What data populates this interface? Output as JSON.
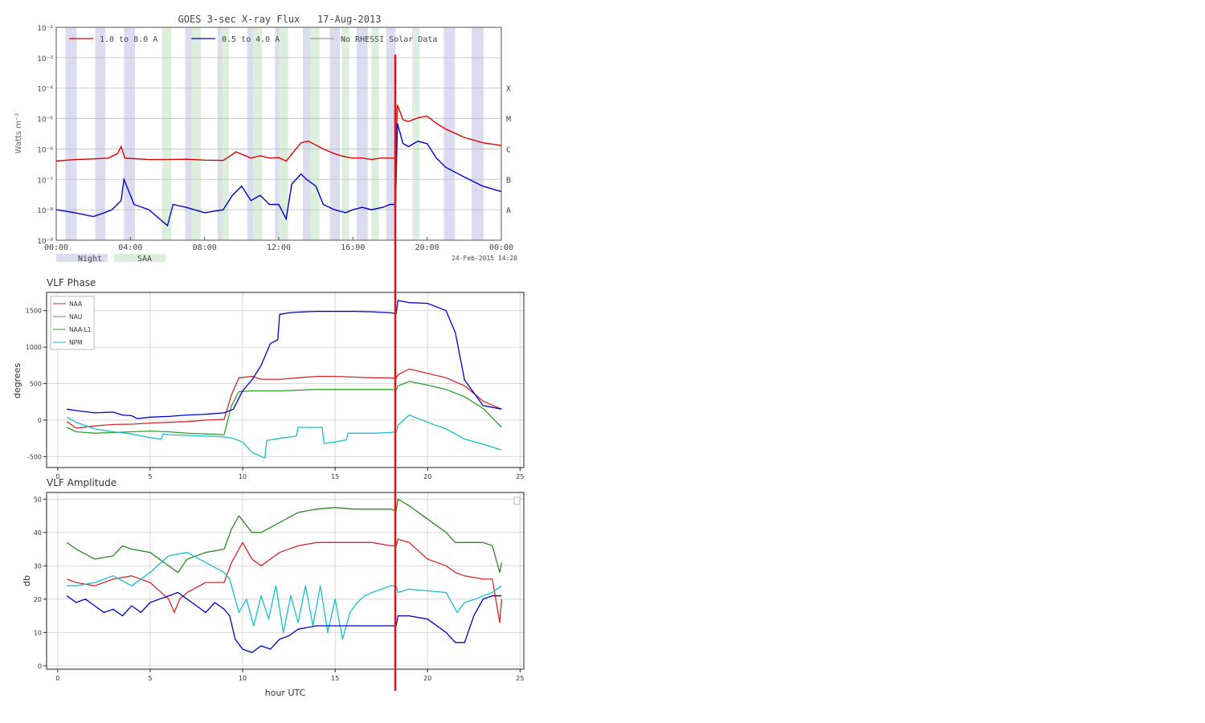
{
  "goes": {
    "title": "GOES 3-sec X-ray Flux   17-Aug-2013",
    "ylabel": "Watts m⁻²",
    "legend": [
      {
        "label": "1.0 to 8.0 A",
        "color": "#dd0000"
      },
      {
        "label": "0.5 to 4.0 A",
        "color": "#0000cc"
      },
      {
        "label": "No RHESSI Solar Data",
        "color": "#999999"
      }
    ],
    "footer_keys": [
      {
        "label": "Night",
        "color": "#dcdcf0"
      },
      {
        "label": "SAA",
        "color": "#dcefdc"
      }
    ],
    "timestamp": "24-Feb-2015 14:20"
  },
  "chart_data": [
    {
      "type": "line",
      "title": "GOES 3-sec X-ray Flux   17-Aug-2013",
      "xlabel": "",
      "ylabel": "Watts m⁻²",
      "y_scale": "log",
      "xlim": [
        0,
        24
      ],
      "ylim": [
        1e-09,
        0.01
      ],
      "x_ticks": [
        "00:00",
        "04:00",
        "08:00",
        "12:00",
        "16:00",
        "20:00",
        "00:00"
      ],
      "y_ticks": [
        "10⁻⁹",
        "10⁻⁸",
        "10⁻⁷",
        "10⁻⁶",
        "10⁻⁵",
        "10⁻⁴",
        "10⁻³",
        "10⁻²"
      ],
      "flare_classes": [
        {
          "label": "A",
          "value": 1e-08
        },
        {
          "label": "B",
          "value": 1e-07
        },
        {
          "label": "C",
          "value": 1e-06
        },
        {
          "label": "M",
          "value": 1e-05
        },
        {
          "label": "X",
          "value": 0.0001
        }
      ],
      "night_intervals": [
        [
          0.5,
          1.1
        ],
        [
          2.1,
          2.65
        ],
        [
          3.65,
          4.25
        ],
        [
          6.95,
          7.75
        ],
        [
          8.7,
          9.3
        ],
        [
          10.3,
          10.9
        ],
        [
          11.8,
          12.4
        ],
        [
          13.3,
          13.9
        ],
        [
          14.75,
          15.3
        ],
        [
          16.2,
          16.8
        ],
        [
          17.8,
          18.3
        ],
        [
          20.9,
          21.5
        ],
        [
          22.4,
          23.05
        ]
      ],
      "saa_intervals": [
        [
          5.7,
          6.2
        ],
        [
          7.3,
          7.8
        ],
        [
          8.9,
          9.3
        ],
        [
          10.6,
          11.1
        ],
        [
          12.0,
          12.5
        ],
        [
          13.7,
          14.2
        ],
        [
          15.4,
          15.8
        ],
        [
          17.0,
          17.4
        ],
        [
          19.2,
          19.6
        ]
      ],
      "series": [
        {
          "name": "1.0 to 8.0 A",
          "color": "#dd0000",
          "x": [
            0,
            1,
            2,
            2.8,
            3.3,
            3.5,
            3.7,
            4.2,
            5,
            6,
            7,
            8,
            9,
            9.3,
            9.7,
            10.5,
            11,
            11.5,
            12,
            12.4,
            13.2,
            13.6,
            14.4,
            15,
            15.6,
            16,
            16.5,
            17,
            17.5,
            18,
            18.3,
            18.4,
            18.7,
            19,
            19.6,
            20,
            20.5,
            21,
            22,
            23,
            24
          ],
          "y": [
            4e-07,
            4.5e-07,
            4.7e-07,
            5e-07,
            7e-07,
            1.2e-06,
            5e-07,
            4.8e-07,
            4.5e-07,
            4.5e-07,
            4.6e-07,
            4.3e-07,
            4.2e-07,
            5.5e-07,
            8e-07,
            5e-07,
            6e-07,
            5e-07,
            5.2e-07,
            4e-07,
            1.6e-06,
            1.8e-06,
            1e-06,
            7e-07,
            5.5e-07,
            5e-07,
            5e-07,
            4.5e-07,
            5e-07,
            5e-07,
            5e-07,
            2.8e-05,
            9e-06,
            8e-06,
            1.1e-05,
            1.2e-05,
            7e-06,
            4.5e-06,
            2.4e-06,
            1.6e-06,
            1.3e-06
          ]
        },
        {
          "name": "0.5 to 4.0 A",
          "color": "#0000cc",
          "x": [
            0,
            1,
            2,
            2.6,
            3,
            3.5,
            3.65,
            4.2,
            5,
            6,
            6.3,
            7,
            8,
            9,
            9.5,
            10,
            10.5,
            11,
            11.5,
            12,
            12.4,
            12.7,
            13.2,
            13.5,
            14,
            14.4,
            15,
            15.6,
            16,
            16.5,
            17,
            17.6,
            18,
            18.3,
            18.4,
            18.7,
            19,
            19.5,
            20,
            20.5,
            21,
            22,
            23,
            24
          ],
          "y": [
            1e-08,
            8e-09,
            6e-09,
            8e-09,
            1e-08,
            2e-08,
            1e-07,
            1.5e-08,
            1e-08,
            3e-09,
            1.5e-08,
            1.2e-08,
            8e-09,
            1e-08,
            3e-08,
            6e-08,
            2e-08,
            3e-08,
            1.5e-08,
            1.5e-08,
            5e-09,
            7e-08,
            1.5e-07,
            1e-07,
            6e-08,
            1.5e-08,
            1e-08,
            8e-09,
            1e-08,
            1.2e-08,
            1e-08,
            1.2e-08,
            1.5e-08,
            1.5e-08,
            7e-06,
            1.5e-06,
            1.2e-06,
            1.8e-06,
            1.5e-06,
            5e-07,
            2.5e-07,
            1.2e-07,
            6e-08,
            4e-08
          ]
        }
      ]
    },
    {
      "type": "line",
      "title": "VLF Phase",
      "xlabel": "",
      "ylabel": "degrees",
      "xlim": [
        -0.6,
        25.2
      ],
      "ylim": [
        -650,
        1750
      ],
      "x_ticks": [
        0,
        5,
        10,
        15,
        20,
        25
      ],
      "y_ticks": [
        -500,
        0,
        500,
        1000,
        1500
      ],
      "legend_position": "top-left",
      "series": [
        {
          "name": "NAA",
          "color": "#d62728",
          "x": [
            0.5,
            1,
            2,
            3,
            4,
            5,
            6,
            7,
            8,
            9,
            9.4,
            9.8,
            10.5,
            11,
            12,
            13,
            14,
            15,
            16,
            17,
            18,
            18.3,
            18.4,
            19,
            20,
            21,
            22,
            23,
            24
          ],
          "y": [
            -20,
            -110,
            -80,
            -60,
            -55,
            -40,
            -30,
            -20,
            0,
            10,
            350,
            580,
            600,
            560,
            560,
            580,
            600,
            600,
            590,
            580,
            580,
            570,
            620,
            700,
            640,
            580,
            470,
            260,
            150
          ]
        },
        {
          "name": "NAU",
          "color": "#7f7f7f",
          "x": [],
          "y": []
        },
        {
          "name": "NAA-L1",
          "color": "#2ca02c",
          "x": [
            0.5,
            1,
            2,
            3,
            4,
            5,
            6,
            7,
            8,
            9,
            9.4,
            9.8,
            10.5,
            11,
            12,
            13,
            14,
            15,
            16,
            17,
            18,
            18.3,
            18.4,
            19,
            20,
            21,
            22,
            23,
            24
          ],
          "y": [
            -100,
            -160,
            -180,
            -170,
            -160,
            -150,
            -160,
            -180,
            -190,
            -200,
            200,
            390,
            400,
            400,
            400,
            410,
            420,
            420,
            420,
            420,
            420,
            410,
            470,
            530,
            480,
            420,
            320,
            160,
            -100
          ]
        },
        {
          "name": "NPM",
          "color": "#17becf",
          "x": [
            0.5,
            1,
            2,
            3,
            4,
            5,
            5.6,
            5.7,
            6,
            7,
            8,
            9,
            9.5,
            10,
            10.5,
            11.2,
            11.3,
            12,
            12.9,
            13,
            13.5,
            14.3,
            14.4,
            15,
            15.6,
            15.7,
            16,
            17,
            18,
            18.3,
            18.4,
            19,
            20,
            21,
            22,
            23,
            24
          ],
          "y": [
            40,
            -30,
            -120,
            -160,
            -190,
            -240,
            -260,
            -190,
            -200,
            -210,
            -220,
            -230,
            -250,
            -300,
            -440,
            -520,
            -280,
            -250,
            -220,
            -100,
            -100,
            -100,
            -320,
            -300,
            -270,
            -180,
            -180,
            -180,
            -170,
            -160,
            -70,
            70,
            -30,
            -120,
            -260,
            -330,
            -410
          ]
        },
        {
          "name": "",
          "color": "#0000cc",
          "x": [
            0.5,
            1,
            2,
            3,
            3.5,
            4,
            4.3,
            5,
            6,
            7,
            8,
            9,
            9.5,
            10,
            10.5,
            11,
            11.5,
            11.9,
            12,
            12.5,
            13,
            14,
            15,
            16,
            17,
            18,
            18.3,
            18.4,
            19,
            20,
            21,
            21.5,
            22,
            23,
            24
          ],
          "y": [
            150,
            130,
            100,
            110,
            70,
            60,
            20,
            40,
            50,
            70,
            80,
            100,
            150,
            400,
            550,
            750,
            1050,
            1100,
            1450,
            1470,
            1480,
            1490,
            1490,
            1490,
            1485,
            1470,
            1460,
            1640,
            1610,
            1600,
            1500,
            1200,
            550,
            200,
            150
          ]
        }
      ]
    },
    {
      "type": "line",
      "title": "VLF Amplitude",
      "xlabel": "hour UTC",
      "ylabel": "db",
      "xlim": [
        -0.6,
        25.2
      ],
      "ylim": [
        -1,
        52
      ],
      "x_ticks": [
        0,
        5,
        10,
        15,
        20,
        25
      ],
      "y_ticks": [
        0,
        10,
        20,
        30,
        40,
        50
      ],
      "series": [
        {
          "name": "NAA",
          "color": "#d62728",
          "x": [
            0.5,
            1,
            2,
            3,
            4,
            5,
            6,
            6.3,
            6.6,
            7,
            8,
            9,
            9.4,
            10,
            10.5,
            11,
            12,
            13,
            14,
            15,
            16,
            17,
            18,
            18.3,
            18.4,
            19,
            20,
            21,
            21.5,
            22,
            23,
            23.5,
            23.9,
            24
          ],
          "y": [
            26,
            25,
            24,
            26,
            27,
            25,
            20,
            16,
            20,
            22,
            25,
            25,
            31,
            37,
            32,
            30,
            34,
            36,
            37,
            37,
            37,
            37,
            36,
            36,
            38,
            37,
            32,
            30,
            28,
            27,
            26,
            26,
            13,
            20
          ]
        },
        {
          "name": "NAA-L1",
          "color": "#2a8a1e",
          "x": [
            0.5,
            1,
            2,
            3,
            3.5,
            4,
            5,
            6,
            6.5,
            7,
            8,
            9,
            9.4,
            9.8,
            10.5,
            11,
            12,
            13,
            14,
            15,
            16,
            17,
            18,
            18.3,
            18.4,
            19,
            20,
            21,
            21.5,
            22,
            23,
            23.5,
            23.9,
            24
          ],
          "y": [
            37,
            35,
            32,
            33,
            36,
            35,
            34,
            30,
            28,
            32,
            34,
            35,
            41,
            45,
            40,
            40,
            43,
            46,
            47,
            47.5,
            47,
            47,
            47,
            46.5,
            50,
            48,
            44,
            40,
            37,
            37,
            37,
            36,
            28,
            31
          ]
        },
        {
          "name": "NPM",
          "color": "#17becf",
          "x": [
            0.5,
            1,
            2,
            3,
            4,
            5,
            6,
            7,
            8,
            9,
            9.3,
            9.8,
            10.2,
            10.6,
            11,
            11.4,
            11.8,
            12.2,
            12.6,
            13,
            13.4,
            13.8,
            14.2,
            14.6,
            15,
            15.4,
            15.8,
            16.2,
            16.6,
            17,
            17.5,
            18,
            18.3,
            18.4,
            19,
            20,
            21,
            21.6,
            22,
            22.6,
            23,
            23.5,
            24
          ],
          "y": [
            24,
            24,
            25,
            27,
            24,
            28,
            33,
            34,
            31,
            28,
            26,
            16,
            20,
            12,
            21,
            14,
            24,
            10,
            21,
            13,
            24,
            12,
            24,
            10,
            20,
            8,
            16,
            19,
            21,
            22,
            23,
            24,
            24,
            22,
            23,
            22.5,
            22,
            16,
            19,
            20,
            21,
            22,
            24
          ]
        },
        {
          "name": "",
          "color": "#0000cc",
          "x": [
            0.5,
            1,
            1.5,
            2,
            2.5,
            3,
            3.5,
            4,
            4.5,
            5,
            5.5,
            6,
            6.5,
            7,
            7.5,
            8,
            8.5,
            9,
            9.3,
            9.6,
            10,
            10.5,
            11,
            11.5,
            12,
            12.5,
            13,
            14,
            15,
            16,
            17,
            18,
            18.3,
            18.4,
            19,
            20,
            21,
            21.5,
            22,
            22.5,
            23,
            23.5,
            24
          ],
          "y": [
            21,
            19,
            20,
            18,
            16,
            17,
            15,
            18,
            16,
            19,
            20,
            21,
            22,
            20,
            18,
            16,
            19,
            17,
            15,
            8,
            5,
            4,
            6,
            5,
            8,
            9,
            11,
            12,
            12,
            12,
            12,
            12,
            12,
            15,
            15,
            14,
            10,
            7,
            7,
            15,
            20,
            21,
            21
          ]
        }
      ]
    }
  ]
}
